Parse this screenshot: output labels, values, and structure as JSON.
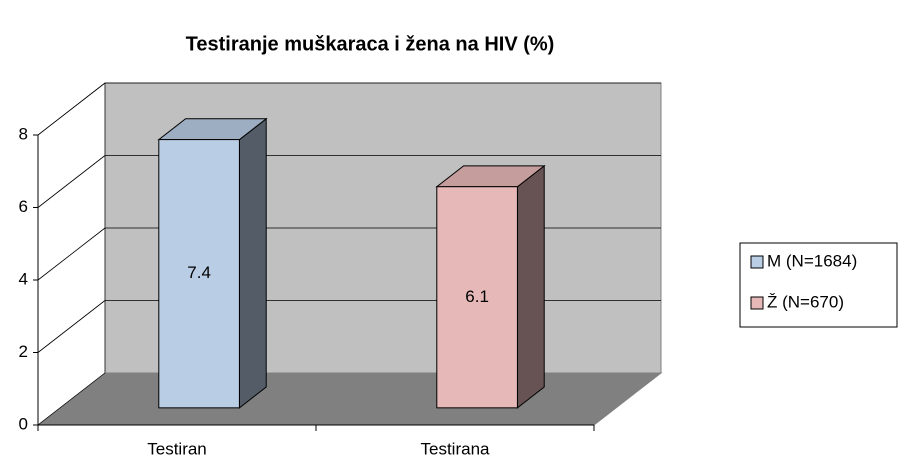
{
  "chart_data": {
    "type": "bar3d",
    "title": "Testiranje muškaraca i žena na HIV (%)",
    "categories": [
      "Testiran",
      "Testirana"
    ],
    "series": [
      {
        "name": "M (N=1684)",
        "color": "#b9cde5",
        "values": [
          7.4,
          null
        ]
      },
      {
        "name": "Ž (N=670)",
        "color": "#e6b9b8",
        "values": [
          null,
          6.1
        ]
      }
    ],
    "ylim": [
      0,
      8
    ],
    "yticks": [
      0,
      2,
      4,
      6,
      8
    ],
    "grid": true,
    "legend": "right"
  }
}
